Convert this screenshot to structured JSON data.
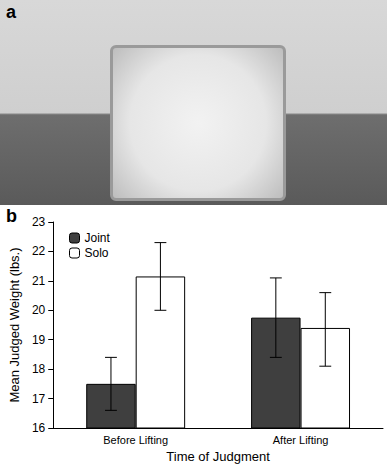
{
  "chart_data": {
    "type": "bar",
    "annotations": [
      "a",
      "b"
    ],
    "x_label": "Time of Judgment",
    "y_label": "Mean Judged Weight (lbs.)",
    "categories": [
      "Before Lifting",
      "After Lifting"
    ],
    "series": [
      {
        "name": "Joint",
        "color": "#3f3f3f",
        "values": [
          17.5,
          19.75
        ],
        "error_bars": [
          [
            16.6,
            18.4
          ],
          [
            18.4,
            21.1
          ]
        ]
      },
      {
        "name": "Solo",
        "color": "#ffffff",
        "values": [
          21.15,
          19.4
        ],
        "error_bars": [
          [
            20.0,
            22.3
          ],
          [
            18.1,
            20.6
          ]
        ]
      }
    ],
    "ylim": [
      16,
      23
    ],
    "yticks": [
      16,
      17,
      18,
      19,
      20,
      21,
      22,
      23
    ],
    "grid": false,
    "legend": "upper left"
  }
}
